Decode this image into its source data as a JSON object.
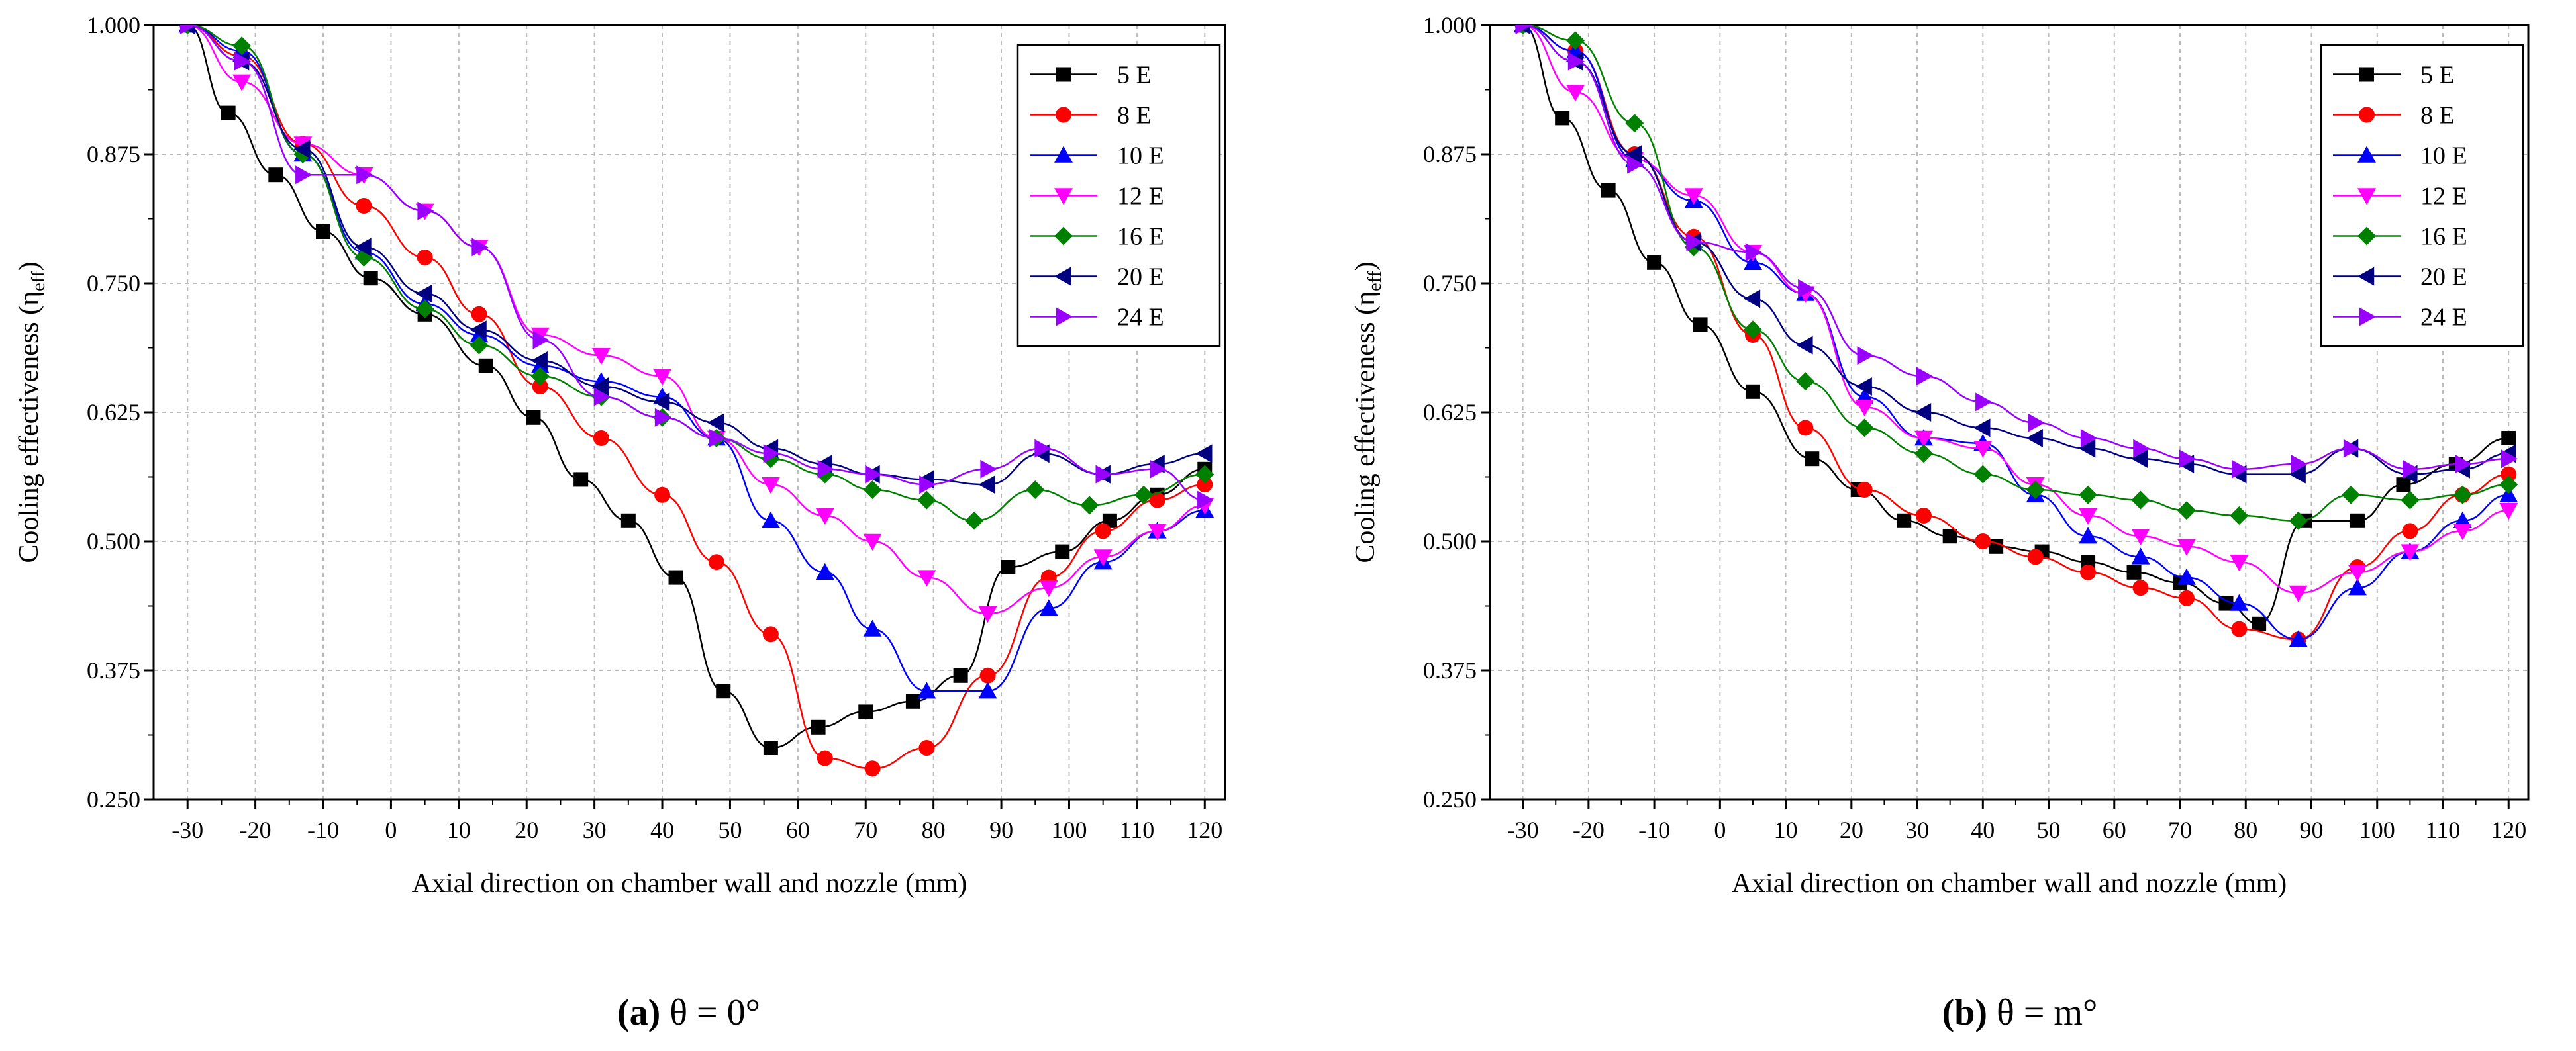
{
  "chart_data": [
    {
      "type": "line",
      "caption_letter": "(a)",
      "caption_text": " θ = 0°",
      "xlabel": "Axial direction on chamber wall and nozzle (mm)",
      "ylabel_main": "Cooling effectiveness (η",
      "ylabel_sub": "eff",
      "ylabel_close": ")",
      "xlim": [
        -35,
        123
      ],
      "ylim": [
        0.25,
        1.0
      ],
      "xticks": [
        "-30",
        "-20",
        "-10",
        "0",
        "10",
        "20",
        "30",
        "40",
        "50",
        "60",
        "70",
        "80",
        "90",
        "100",
        "110",
        "120"
      ],
      "yticks": [
        "0.250",
        "0.375",
        "0.500",
        "0.625",
        "0.750",
        "0.875",
        "1.000"
      ],
      "grid": true,
      "legend_position": "top-right",
      "series": [
        {
          "name": "5 E",
          "color": "#000000",
          "marker": "square",
          "x": [
            -30,
            -24,
            -17,
            -10,
            -3,
            5,
            14,
            21,
            28,
            35,
            42,
            49,
            56,
            63,
            70,
            77,
            84,
            91,
            99,
            106,
            113,
            120
          ],
          "y": [
            1.0,
            0.915,
            0.855,
            0.8,
            0.755,
            0.72,
            0.67,
            0.62,
            0.56,
            0.52,
            0.465,
            0.355,
            0.3,
            0.32,
            0.335,
            0.345,
            0.37,
            0.475,
            0.49,
            0.52,
            0.545,
            0.57
          ]
        },
        {
          "name": "8 E",
          "color": "#ff0000",
          "marker": "circle",
          "x": [
            -30,
            -22,
            -13,
            -4,
            5,
            13,
            22,
            31,
            40,
            48,
            56,
            64,
            71,
            79,
            88,
            97,
            105,
            113,
            120
          ],
          "y": [
            1.0,
            0.97,
            0.885,
            0.825,
            0.775,
            0.72,
            0.65,
            0.6,
            0.545,
            0.48,
            0.41,
            0.29,
            0.28,
            0.3,
            0.37,
            0.465,
            0.51,
            0.54,
            0.555
          ]
        },
        {
          "name": "10 E",
          "color": "#0000ff",
          "marker": "triangle-up",
          "x": [
            -30,
            -22,
            -13,
            -4,
            5,
            13,
            22,
            31,
            40,
            48,
            56,
            64,
            71,
            79,
            88,
            97,
            105,
            113,
            120
          ],
          "y": [
            1.0,
            0.975,
            0.875,
            0.78,
            0.73,
            0.7,
            0.67,
            0.655,
            0.64,
            0.6,
            0.52,
            0.47,
            0.415,
            0.355,
            0.355,
            0.435,
            0.48,
            0.51,
            0.53
          ]
        },
        {
          "name": "12 E",
          "color": "#ff00ff",
          "marker": "triangle-down",
          "x": [
            -30,
            -22,
            -13,
            -4,
            5,
            13,
            22,
            31,
            40,
            48,
            56,
            64,
            71,
            79,
            88,
            97,
            105,
            113,
            120
          ],
          "y": [
            1.0,
            0.945,
            0.885,
            0.855,
            0.82,
            0.785,
            0.7,
            0.68,
            0.66,
            0.6,
            0.555,
            0.525,
            0.5,
            0.465,
            0.43,
            0.455,
            0.485,
            0.51,
            0.535
          ]
        },
        {
          "name": "16 E",
          "color": "#008000",
          "marker": "diamond",
          "x": [
            -30,
            -22,
            -13,
            -4,
            5,
            13,
            22,
            31,
            40,
            48,
            56,
            64,
            71,
            79,
            86,
            95,
            103,
            111,
            120
          ],
          "y": [
            1.0,
            0.98,
            0.875,
            0.775,
            0.725,
            0.69,
            0.66,
            0.64,
            0.62,
            0.6,
            0.58,
            0.565,
            0.55,
            0.54,
            0.52,
            0.55,
            0.535,
            0.545,
            0.565
          ]
        },
        {
          "name": "20 E",
          "color": "#000080",
          "marker": "triangle-left",
          "x": [
            -30,
            -22,
            -13,
            -4,
            5,
            13,
            22,
            31,
            40,
            48,
            56,
            64,
            71,
            79,
            88,
            96,
            105,
            113,
            120
          ],
          "y": [
            1.0,
            0.965,
            0.88,
            0.785,
            0.74,
            0.705,
            0.675,
            0.65,
            0.635,
            0.615,
            0.59,
            0.575,
            0.565,
            0.56,
            0.555,
            0.585,
            0.565,
            0.575,
            0.585
          ]
        },
        {
          "name": "24 E",
          "color": "#9900ff",
          "marker": "triangle-right",
          "x": [
            -30,
            -22,
            -13,
            -4,
            5,
            13,
            22,
            31,
            40,
            48,
            56,
            64,
            71,
            79,
            88,
            96,
            105,
            113,
            120
          ],
          "y": [
            1.0,
            0.965,
            0.855,
            0.855,
            0.82,
            0.785,
            0.695,
            0.64,
            0.62,
            0.6,
            0.585,
            0.57,
            0.565,
            0.555,
            0.57,
            0.59,
            0.565,
            0.57,
            0.54
          ]
        }
      ]
    },
    {
      "type": "line",
      "caption_letter": "(b)",
      "caption_text": " θ = m°",
      "xlabel": "Axial direction on chamber wall and nozzle (mm)",
      "ylabel_main": "Cooling effectiveness (η",
      "ylabel_sub": "eff",
      "ylabel_close": ")",
      "xlim": [
        -35,
        123
      ],
      "ylim": [
        0.25,
        1.0
      ],
      "xticks": [
        "-30",
        "-20",
        "-10",
        "0",
        "10",
        "20",
        "30",
        "40",
        "50",
        "60",
        "70",
        "80",
        "90",
        "100",
        "110",
        "120"
      ],
      "yticks": [
        "0.250",
        "0.375",
        "0.500",
        "0.625",
        "0.750",
        "0.875",
        "1.000"
      ],
      "grid": true,
      "legend_position": "top-right",
      "series": [
        {
          "name": "5 E",
          "color": "#000000",
          "marker": "square",
          "x": [
            -30,
            -24,
            -17,
            -10,
            -3,
            5,
            14,
            21,
            28,
            35,
            42,
            49,
            56,
            63,
            70,
            77,
            82,
            89,
            97,
            104,
            112,
            120
          ],
          "y": [
            1.0,
            0.91,
            0.84,
            0.77,
            0.71,
            0.645,
            0.58,
            0.55,
            0.52,
            0.505,
            0.495,
            0.49,
            0.48,
            0.47,
            0.46,
            0.44,
            0.42,
            0.52,
            0.52,
            0.555,
            0.575,
            0.6
          ]
        },
        {
          "name": "8 E",
          "color": "#ff0000",
          "marker": "circle",
          "x": [
            -30,
            -22,
            -13,
            -4,
            5,
            13,
            22,
            31,
            40,
            48,
            56,
            64,
            71,
            79,
            88,
            97,
            105,
            113,
            120
          ],
          "y": [
            1.0,
            0.975,
            0.875,
            0.795,
            0.7,
            0.61,
            0.55,
            0.525,
            0.5,
            0.485,
            0.47,
            0.455,
            0.445,
            0.415,
            0.405,
            0.475,
            0.51,
            0.545,
            0.565
          ]
        },
        {
          "name": "10 E",
          "color": "#0000ff",
          "marker": "triangle-up",
          "x": [
            -30,
            -22,
            -13,
            -4,
            5,
            13,
            22,
            31,
            40,
            48,
            56,
            64,
            71,
            79,
            88,
            97,
            105,
            113,
            120
          ],
          "y": [
            1.0,
            0.975,
            0.87,
            0.83,
            0.77,
            0.74,
            0.64,
            0.6,
            0.595,
            0.545,
            0.505,
            0.485,
            0.465,
            0.44,
            0.405,
            0.455,
            0.49,
            0.52,
            0.545
          ]
        },
        {
          "name": "12 E",
          "color": "#ff00ff",
          "marker": "triangle-down",
          "x": [
            -30,
            -22,
            -13,
            -4,
            5,
            13,
            22,
            31,
            40,
            48,
            56,
            64,
            71,
            79,
            88,
            97,
            105,
            113,
            120
          ],
          "y": [
            1.0,
            0.935,
            0.87,
            0.835,
            0.78,
            0.74,
            0.63,
            0.6,
            0.59,
            0.555,
            0.525,
            0.505,
            0.495,
            0.48,
            0.45,
            0.47,
            0.49,
            0.51,
            0.53
          ]
        },
        {
          "name": "16 E",
          "color": "#008000",
          "marker": "diamond",
          "x": [
            -30,
            -22,
            -13,
            -4,
            5,
            13,
            22,
            31,
            40,
            48,
            56,
            64,
            71,
            79,
            88,
            96,
            105,
            113,
            120
          ],
          "y": [
            1.0,
            0.985,
            0.905,
            0.785,
            0.705,
            0.655,
            0.61,
            0.585,
            0.565,
            0.55,
            0.545,
            0.54,
            0.53,
            0.525,
            0.52,
            0.545,
            0.54,
            0.545,
            0.555
          ]
        },
        {
          "name": "20 E",
          "color": "#000080",
          "marker": "triangle-left",
          "x": [
            -30,
            -22,
            -13,
            -4,
            5,
            13,
            22,
            31,
            40,
            48,
            56,
            64,
            71,
            79,
            88,
            96,
            105,
            113,
            120
          ],
          "y": [
            1.0,
            0.965,
            0.875,
            0.79,
            0.735,
            0.69,
            0.65,
            0.625,
            0.61,
            0.6,
            0.59,
            0.58,
            0.575,
            0.565,
            0.565,
            0.59,
            0.565,
            0.57,
            0.585
          ]
        },
        {
          "name": "24 E",
          "color": "#9900ff",
          "marker": "triangle-right",
          "x": [
            -30,
            -22,
            -13,
            -4,
            5,
            13,
            22,
            31,
            40,
            48,
            56,
            64,
            71,
            79,
            88,
            96,
            105,
            113,
            120
          ],
          "y": [
            1.0,
            0.965,
            0.865,
            0.79,
            0.78,
            0.745,
            0.68,
            0.66,
            0.635,
            0.615,
            0.6,
            0.59,
            0.58,
            0.57,
            0.575,
            0.59,
            0.57,
            0.575,
            0.58
          ]
        }
      ]
    }
  ]
}
